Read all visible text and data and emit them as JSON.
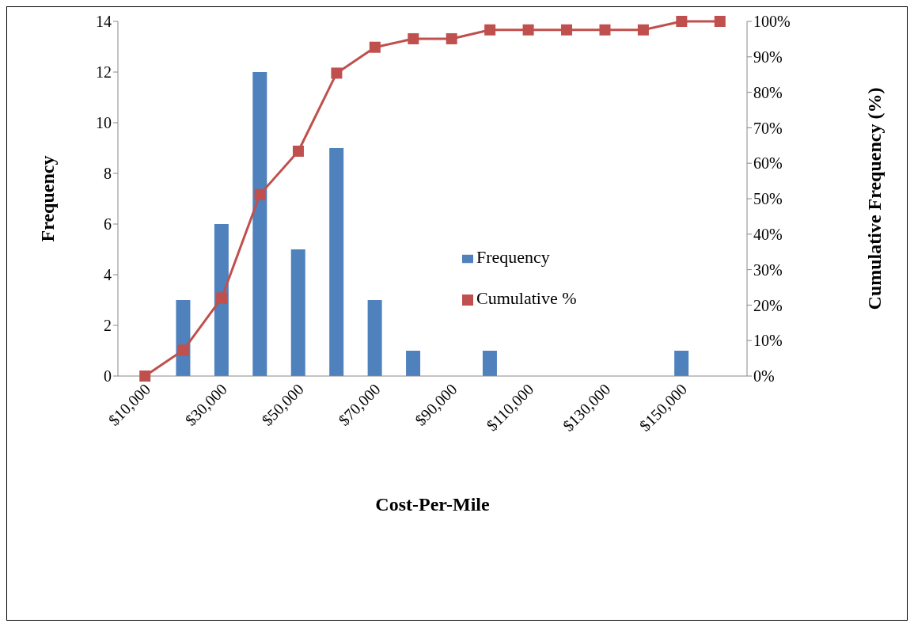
{
  "chart_data": {
    "type": "bar",
    "xlabel": "Cost-Per-Mile",
    "ylabel": "Frequency",
    "y2label": "Cumulative Frequency (%)",
    "categories": [
      "$10,000",
      null,
      "$30,000",
      null,
      "$50,000",
      null,
      "$70,000",
      null,
      "$90,000",
      null,
      "$110,000",
      null,
      "$130,000",
      null,
      "$150,000",
      null
    ],
    "series": [
      {
        "name": "Frequency",
        "color": "#4f81bd",
        "values": [
          0,
          3,
          6,
          12,
          5,
          9,
          3,
          1,
          0,
          1,
          0,
          0,
          0,
          0,
          1,
          0
        ]
      },
      {
        "name": "Cumulative %",
        "type": "line",
        "axis": "y2",
        "color": "#c0504d",
        "values": [
          0,
          7.3,
          22.0,
          51.2,
          63.4,
          85.4,
          92.7,
          95.1,
          95.1,
          97.6,
          97.6,
          97.6,
          97.6,
          97.6,
          100,
          100
        ]
      }
    ],
    "ylim": [
      0,
      14
    ],
    "yticks": [
      0,
      2,
      4,
      6,
      8,
      10,
      12,
      14
    ],
    "y2lim": [
      0,
      100
    ],
    "y2ticks": [
      {
        "value": 0,
        "label": "0%"
      },
      {
        "value": 10,
        "label": "10%"
      },
      {
        "value": 20,
        "label": "20%"
      },
      {
        "value": 30,
        "label": "30%"
      },
      {
        "value": 40,
        "label": "40%"
      },
      {
        "value": 50,
        "label": "50%"
      },
      {
        "value": 60,
        "label": "60%"
      },
      {
        "value": 70,
        "label": "70%"
      },
      {
        "value": 80,
        "label": "80%"
      },
      {
        "value": 90,
        "label": "90%"
      },
      {
        "value": 100,
        "label": "100%"
      }
    ],
    "marker": "square",
    "legend": "right",
    "grid": false
  }
}
